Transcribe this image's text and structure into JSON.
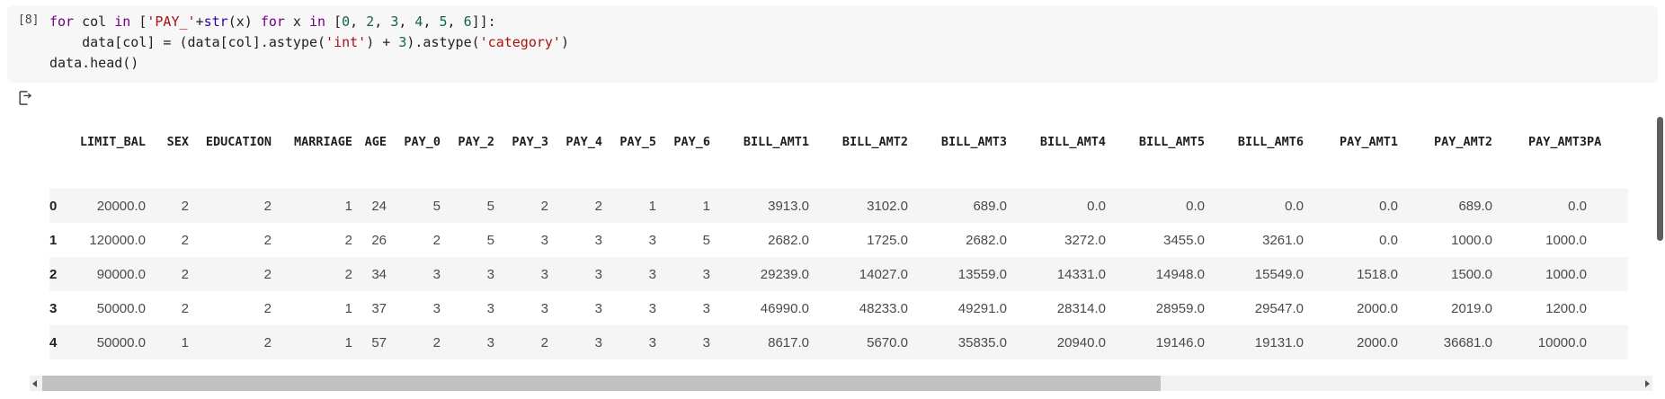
{
  "code_cell": {
    "execution_count": "[8]",
    "lines": [
      [
        {
          "t": "for",
          "c": "kw"
        },
        {
          "t": " col ",
          "c": ""
        },
        {
          "t": "in",
          "c": "kw"
        },
        {
          "t": " [",
          "c": ""
        },
        {
          "t": "'PAY_'",
          "c": "str"
        },
        {
          "t": "+",
          "c": ""
        },
        {
          "t": "str",
          "c": "bi"
        },
        {
          "t": "(x) ",
          "c": ""
        },
        {
          "t": "for",
          "c": "kw"
        },
        {
          "t": " x ",
          "c": ""
        },
        {
          "t": "in",
          "c": "kw"
        },
        {
          "t": " [",
          "c": ""
        },
        {
          "t": "0",
          "c": "num"
        },
        {
          "t": ", ",
          "c": ""
        },
        {
          "t": "2",
          "c": "num"
        },
        {
          "t": ", ",
          "c": ""
        },
        {
          "t": "3",
          "c": "num"
        },
        {
          "t": ", ",
          "c": ""
        },
        {
          "t": "4",
          "c": "num"
        },
        {
          "t": ", ",
          "c": ""
        },
        {
          "t": "5",
          "c": "num"
        },
        {
          "t": ", ",
          "c": ""
        },
        {
          "t": "6",
          "c": "num"
        },
        {
          "t": "]]:",
          "c": ""
        }
      ],
      [
        {
          "t": "    data[col] = (data[col].astype(",
          "c": ""
        },
        {
          "t": "'int'",
          "c": "str"
        },
        {
          "t": ") + ",
          "c": ""
        },
        {
          "t": "3",
          "c": "num"
        },
        {
          "t": ").astype(",
          "c": ""
        },
        {
          "t": "'category'",
          "c": "str"
        },
        {
          "t": ")",
          "c": ""
        }
      ],
      [
        {
          "t": "data.head()",
          "c": ""
        }
      ]
    ]
  },
  "icons": {
    "output_indicator": "cell-output-icon",
    "scroll_left": "scroll-left-arrow-icon",
    "scroll_right": "scroll-right-arrow-icon"
  },
  "table": {
    "columns": [
      "LIMIT_BAL",
      "SEX",
      "EDUCATION",
      "MARRIAGE",
      "AGE",
      "PAY_0",
      "PAY_2",
      "PAY_3",
      "PAY_4",
      "PAY_5",
      "PAY_6",
      "BILL_AMT1",
      "BILL_AMT2",
      "BILL_AMT3",
      "BILL_AMT4",
      "BILL_AMT5",
      "BILL_AMT6",
      "PAY_AMT1",
      "PAY_AMT2",
      "PAY_AMT3",
      "PA"
    ],
    "rows": [
      {
        "index": "0",
        "values": [
          "20000.0",
          "2",
          "2",
          "1",
          "24",
          "5",
          "5",
          "2",
          "2",
          "1",
          "1",
          "3913.0",
          "3102.0",
          "689.0",
          "0.0",
          "0.0",
          "0.0",
          "0.0",
          "689.0",
          "0.0",
          ""
        ]
      },
      {
        "index": "1",
        "values": [
          "120000.0",
          "2",
          "2",
          "2",
          "26",
          "2",
          "5",
          "3",
          "3",
          "3",
          "5",
          "2682.0",
          "1725.0",
          "2682.0",
          "3272.0",
          "3455.0",
          "3261.0",
          "0.0",
          "1000.0",
          "1000.0",
          ""
        ]
      },
      {
        "index": "2",
        "values": [
          "90000.0",
          "2",
          "2",
          "2",
          "34",
          "3",
          "3",
          "3",
          "3",
          "3",
          "3",
          "29239.0",
          "14027.0",
          "13559.0",
          "14331.0",
          "14948.0",
          "15549.0",
          "1518.0",
          "1500.0",
          "1000.0",
          ""
        ]
      },
      {
        "index": "3",
        "values": [
          "50000.0",
          "2",
          "2",
          "1",
          "37",
          "3",
          "3",
          "3",
          "3",
          "3",
          "3",
          "46990.0",
          "48233.0",
          "49291.0",
          "28314.0",
          "28959.0",
          "29547.0",
          "2000.0",
          "2019.0",
          "1200.0",
          ""
        ]
      },
      {
        "index": "4",
        "values": [
          "50000.0",
          "1",
          "2",
          "1",
          "57",
          "2",
          "3",
          "2",
          "3",
          "3",
          "3",
          "8617.0",
          "5670.0",
          "35835.0",
          "20940.0",
          "19146.0",
          "19131.0",
          "2000.0",
          "36681.0",
          "10000.0",
          ""
        ]
      }
    ]
  },
  "colors": {
    "kw": "#770088",
    "builtin": "#3300aa",
    "num": "#116644",
    "str": "#aa1111",
    "code_text": "#212121",
    "cell_bg": "#f7f7f7",
    "zebra": "#f5f5f5",
    "cell_text": "#4a4a4a",
    "header_text": "#1f1f1f",
    "exec": "#424242",
    "hscroll_track": "#f1f1f1",
    "hscroll_thumb": "#c1c1c1",
    "vscroll_thumb": "#5f5f5f",
    "arrow": "#505050"
  }
}
